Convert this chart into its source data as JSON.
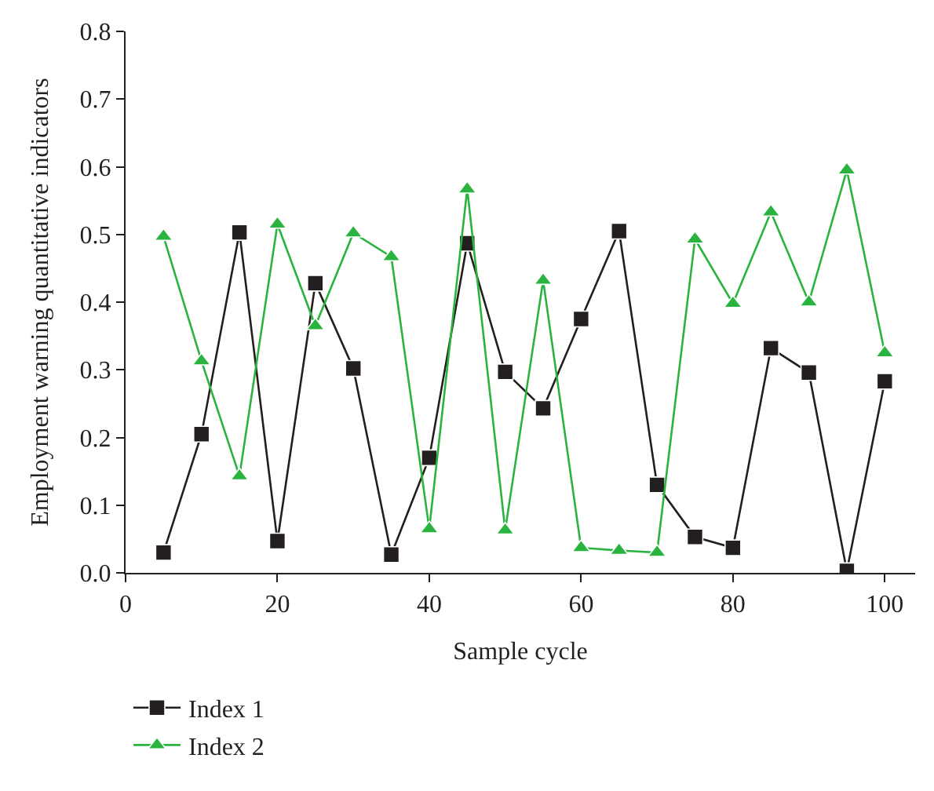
{
  "chart_data": {
    "type": "line",
    "xlabel": "Sample cycle",
    "ylabel": "Employment warning quantitative indicators",
    "x": [
      5,
      10,
      15,
      20,
      25,
      30,
      35,
      40,
      45,
      50,
      55,
      60,
      65,
      70,
      75,
      80,
      85,
      90,
      95,
      100
    ],
    "series": [
      {
        "name": "Index 1",
        "color": "#231f20",
        "marker": "square",
        "values": [
          0.03,
          0.205,
          0.503,
          0.047,
          0.428,
          0.302,
          0.027,
          0.17,
          0.487,
          0.297,
          0.243,
          0.375,
          0.505,
          0.13,
          0.053,
          0.037,
          0.332,
          0.296,
          0.003,
          0.283
        ]
      },
      {
        "name": "Index 2",
        "color": "#2bb340",
        "marker": "triangle",
        "values": [
          0.497,
          0.313,
          0.143,
          0.515,
          0.365,
          0.502,
          0.467,
          0.065,
          0.567,
          0.063,
          0.432,
          0.037,
          0.033,
          0.03,
          0.493,
          0.398,
          0.533,
          0.4,
          0.595,
          0.325
        ]
      }
    ],
    "xlim": [
      0,
      104
    ],
    "xticks": [
      0,
      20,
      40,
      60,
      80,
      100
    ],
    "ylim": [
      0,
      0.8
    ],
    "yticks": [
      {
        "value": 0,
        "label": "0.0"
      },
      0.1,
      0.2,
      0.3,
      0.4,
      0.5,
      0.6,
      0.7,
      0.8
    ],
    "legend": "bottom left",
    "line_style": "solid"
  }
}
